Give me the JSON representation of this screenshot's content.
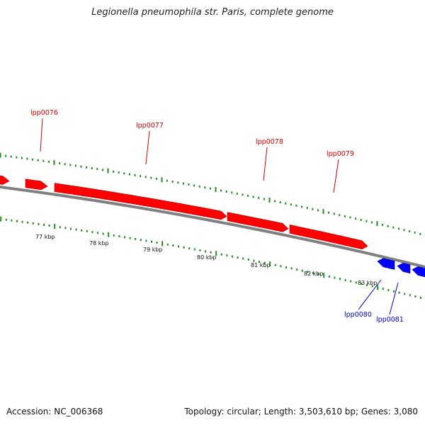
{
  "title": "Legionella pneumophila str. Paris, complete genome",
  "footer": {
    "accession": "Accession: NC_006368",
    "summary": "Topology: circular; Length: 3,503,610 bp; Genes: 3,080"
  },
  "colors": {
    "forward_gene": "#ff0000",
    "reverse_gene": "#0000ff",
    "backbone": "#808080",
    "tick": "#228b22",
    "forward_label": "#cc0000",
    "reverse_label": "#0000cc"
  },
  "scale_labels": [
    "77 kbp",
    "78 kbp",
    "79 kbp",
    "80 kbp",
    "81 kbp",
    "82 kbp",
    "83 kbp"
  ],
  "genes": [
    {
      "id": "lpp0075",
      "label": "",
      "strand": "+"
    },
    {
      "id": "lpp0076",
      "label": "lpp0076",
      "strand": "+"
    },
    {
      "id": "lpp0077",
      "label": "lpp0077",
      "strand": "+"
    },
    {
      "id": "lpp0078",
      "label": "lpp0078",
      "strand": "+"
    },
    {
      "id": "lpp0079",
      "label": "lpp0079",
      "strand": "+"
    },
    {
      "id": "lpp0080",
      "label": "lpp0080",
      "strand": "-"
    },
    {
      "id": "lpp0081",
      "label": "lpp0081",
      "strand": "-"
    },
    {
      "id": "lpp0082",
      "label": "",
      "strand": "-"
    }
  ]
}
